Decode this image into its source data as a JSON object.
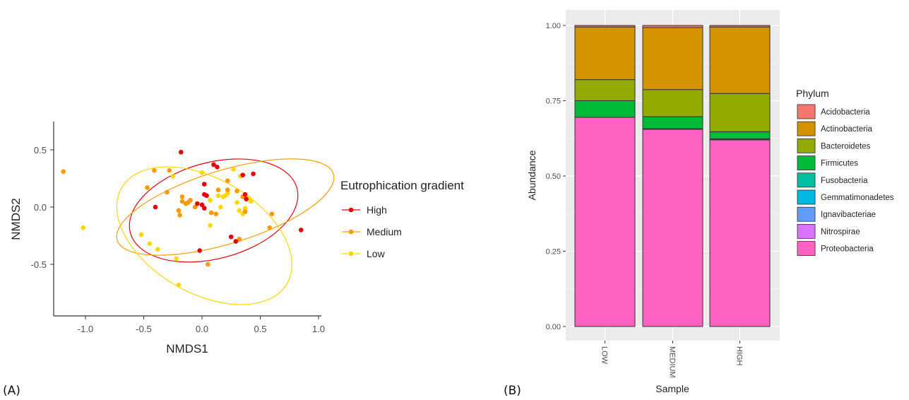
{
  "chart_data": [
    {
      "panel_label": "(A)",
      "type": "scatter",
      "xlabel": "NMDS1",
      "ylabel": "NMDS2",
      "xlim": [
        -1.3,
        1.0
      ],
      "ylim": [
        -0.95,
        0.75
      ],
      "xticks": [
        "-1.0",
        "-0.5",
        "0.0",
        "0.5",
        "1.0"
      ],
      "yticks": [
        "0.5",
        "0.0",
        "-0.5"
      ],
      "xtick_values": [
        -1.0,
        -0.5,
        0.0,
        0.5,
        1.0
      ],
      "ytick_values": [
        0.5,
        0.0,
        -0.5
      ],
      "grid": false,
      "legend": {
        "title": "Eutrophication gradient",
        "position": "right"
      },
      "series": [
        {
          "name": "High",
          "color": "#e8000b",
          "points": [
            [
              -0.18,
              0.48
            ],
            [
              0.1,
              0.37
            ],
            [
              0.13,
              0.35
            ],
            [
              0.02,
              0.2
            ],
            [
              0.02,
              0.11
            ],
            [
              0.04,
              0.1
            ],
            [
              0.35,
              0.28
            ],
            [
              0.44,
              0.29
            ],
            [
              -0.4,
              0.0
            ],
            [
              -0.04,
              0.03
            ],
            [
              0.02,
              -0.01
            ],
            [
              0.0,
              0.02
            ],
            [
              0.37,
              0.11
            ],
            [
              0.38,
              0.07
            ],
            [
              0.25,
              -0.26
            ],
            [
              0.29,
              -0.3
            ],
            [
              0.85,
              -0.2
            ],
            [
              -0.02,
              -0.38
            ]
          ],
          "ellipse": {
            "center": [
              0.1,
              -0.03
            ],
            "rx": 0.74,
            "ry": 0.42,
            "angle_deg": -15
          }
        },
        {
          "name": "Medium",
          "color": "#ff9900",
          "points": [
            [
              -1.19,
              0.31
            ],
            [
              -0.41,
              0.32
            ],
            [
              -0.28,
              0.32
            ],
            [
              -0.47,
              0.17
            ],
            [
              -0.3,
              0.13
            ],
            [
              -0.17,
              0.09
            ],
            [
              -0.1,
              0.06
            ],
            [
              0.02,
              0.2
            ],
            [
              0.14,
              0.15
            ],
            [
              0.22,
              0.23
            ],
            [
              0.22,
              0.15
            ],
            [
              0.3,
              0.14
            ],
            [
              -0.17,
              0.05
            ],
            [
              -0.14,
              0.03
            ],
            [
              -0.12,
              0.04
            ],
            [
              -0.2,
              -0.03
            ],
            [
              -0.19,
              -0.07
            ],
            [
              -0.06,
              0.0
            ],
            [
              0.08,
              -0.05
            ],
            [
              0.12,
              -0.06
            ],
            [
              0.35,
              0.09
            ],
            [
              0.37,
              -0.04
            ],
            [
              0.58,
              -0.18
            ],
            [
              0.6,
              -0.06
            ],
            [
              0.32,
              -0.28
            ],
            [
              0.05,
              -0.5
            ]
          ],
          "ellipse": {
            "center": [
              0.2,
              0.0
            ],
            "rx": 0.97,
            "ry": 0.32,
            "angle_deg": -17
          }
        },
        {
          "name": "Low",
          "color": "#ffd700",
          "points": [
            [
              -1.02,
              -0.18
            ],
            [
              -0.52,
              -0.24
            ],
            [
              -0.45,
              -0.32
            ],
            [
              -0.38,
              -0.37
            ],
            [
              -0.22,
              -0.45
            ],
            [
              -0.2,
              -0.68
            ],
            [
              -0.25,
              0.27
            ],
            [
              0.0,
              0.3
            ],
            [
              0.07,
              0.06
            ],
            [
              0.07,
              0.06
            ],
            [
              0.2,
              0.1
            ],
            [
              0.27,
              0.33
            ],
            [
              0.33,
              0.27
            ],
            [
              0.16,
              0.0
            ],
            [
              0.3,
              0.04
            ],
            [
              0.14,
              0.1
            ],
            [
              0.18,
              0.09
            ],
            [
              0.22,
              0.12
            ],
            [
              0.07,
              -0.16
            ],
            [
              0.32,
              -0.03
            ],
            [
              0.35,
              -0.06
            ],
            [
              0.37,
              -0.01
            ],
            [
              0.4,
              0.08
            ],
            [
              0.42,
              0.05
            ]
          ],
          "ellipse": {
            "center": [
              0.02,
              -0.25
            ],
            "rx": 0.82,
            "ry": 0.5,
            "angle_deg": 30
          }
        }
      ]
    },
    {
      "panel_label": "(B)",
      "type": "bar",
      "stacked": true,
      "xlabel": "Sample",
      "ylabel": "Abundance",
      "ylim": [
        0,
        1.0
      ],
      "yticks": [
        "0.00",
        "0.25",
        "0.50",
        "0.75",
        "1.00"
      ],
      "ytick_values": [
        0,
        0.25,
        0.5,
        0.75,
        1.0
      ],
      "categories": [
        "LOW",
        "MEDIUM",
        "HIGH"
      ],
      "grid": true,
      "legend": {
        "title": "Phylum",
        "position": "right"
      },
      "series": [
        {
          "name": "Proteobacteria",
          "color": "#ff61c3",
          "values": [
            0.695,
            0.655,
            0.62
          ]
        },
        {
          "name": "Nitrospirae",
          "color": "#db72fb",
          "values": [
            0.0,
            0.001,
            0.001
          ]
        },
        {
          "name": "Ignavibacteriae",
          "color": "#619cff",
          "values": [
            0.0,
            0.001,
            0.002
          ]
        },
        {
          "name": "Gemmatimonadetes",
          "color": "#00b9e3",
          "values": [
            0.0,
            0.0,
            0.0
          ]
        },
        {
          "name": "Fusobacteria",
          "color": "#00c19f",
          "values": [
            0.0,
            0.0,
            0.0
          ]
        },
        {
          "name": "Firmicutes",
          "color": "#00ba38",
          "values": [
            0.055,
            0.04,
            0.024
          ]
        },
        {
          "name": "Bacteroidetes",
          "color": "#93aa00",
          "values": [
            0.07,
            0.09,
            0.127
          ]
        },
        {
          "name": "Actinobacteria",
          "color": "#d39200",
          "values": [
            0.175,
            0.206,
            0.221
          ]
        },
        {
          "name": "Acidobacteria",
          "color": "#f8766d",
          "values": [
            0.005,
            0.007,
            0.005
          ]
        }
      ],
      "legend_order": [
        "Acidobacteria",
        "Actinobacteria",
        "Bacteroidetes",
        "Firmicutes",
        "Fusobacteria",
        "Gemmatimonadetes",
        "Ignavibacteriae",
        "Nitrospirae",
        "Proteobacteria"
      ]
    }
  ]
}
